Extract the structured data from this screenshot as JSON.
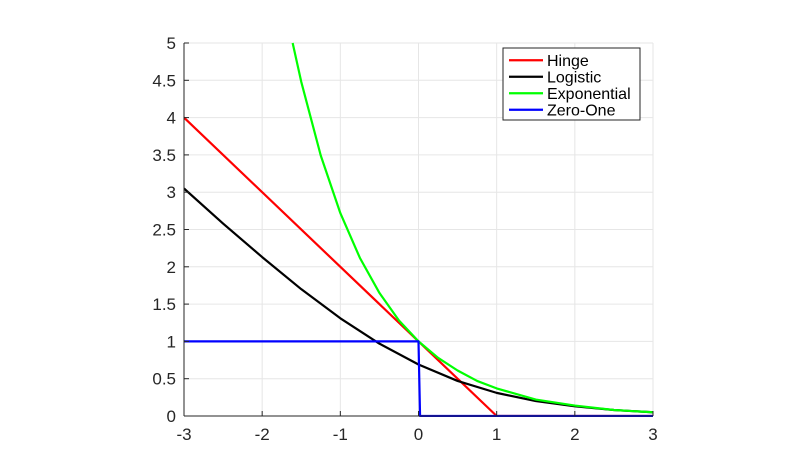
{
  "chart_data": {
    "type": "line",
    "title": "",
    "xlabel": "",
    "ylabel": "",
    "xlim": [
      -3,
      3
    ],
    "ylim": [
      0,
      5
    ],
    "x_ticks": [
      "-3",
      "-2",
      "-1",
      "0",
      "1",
      "2",
      "3"
    ],
    "y_ticks": [
      "0",
      "0.5",
      "1",
      "1.5",
      "2",
      "2.5",
      "3",
      "3.5",
      "4",
      "4.5",
      "5"
    ],
    "grid": true,
    "legend_position": "top-right",
    "series": [
      {
        "name": "Hinge",
        "color": "#ff0000",
        "points": [
          [
            -3,
            4
          ],
          [
            1,
            0
          ],
          [
            3,
            0
          ]
        ]
      },
      {
        "name": "Logistic",
        "color": "#000000",
        "points": [
          [
            -3,
            3.05
          ],
          [
            -2.5,
            2.58
          ],
          [
            -2,
            2.13
          ],
          [
            -1.5,
            1.7
          ],
          [
            -1,
            1.31
          ],
          [
            -0.5,
            0.97
          ],
          [
            0,
            0.69
          ],
          [
            0.5,
            0.47
          ],
          [
            1,
            0.31
          ],
          [
            1.5,
            0.2
          ],
          [
            2,
            0.13
          ],
          [
            2.5,
            0.08
          ],
          [
            3,
            0.05
          ]
        ]
      },
      {
        "name": "Exponential",
        "color": "#00ff00",
        "points": [
          [
            -1.61,
            5
          ],
          [
            -1.5,
            4.48
          ],
          [
            -1.25,
            3.49
          ],
          [
            -1,
            2.72
          ],
          [
            -0.75,
            2.12
          ],
          [
            -0.5,
            1.65
          ],
          [
            -0.25,
            1.28
          ],
          [
            0,
            1
          ],
          [
            0.25,
            0.78
          ],
          [
            0.5,
            0.61
          ],
          [
            0.75,
            0.47
          ],
          [
            1,
            0.37
          ],
          [
            1.5,
            0.22
          ],
          [
            2,
            0.14
          ],
          [
            2.5,
            0.08
          ],
          [
            3,
            0.05
          ]
        ]
      },
      {
        "name": "Zero-One",
        "color": "#0000ff",
        "points": [
          [
            -3,
            1
          ],
          [
            0,
            1
          ],
          [
            0.02,
            0
          ],
          [
            3,
            0
          ]
        ]
      }
    ]
  }
}
